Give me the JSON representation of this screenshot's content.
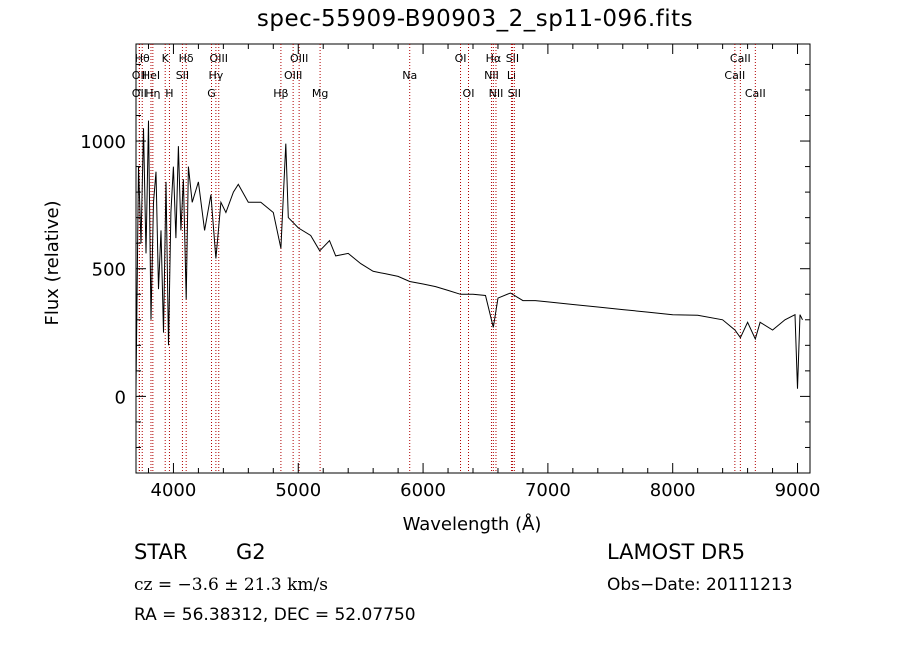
{
  "chart_data": {
    "type": "line",
    "title": "spec-55909-B90903_2_sp11-096.fits",
    "xlabel": "Wavelength (Å)",
    "ylabel": "Flux (relative)",
    "xlim": [
      3700,
      9100
    ],
    "ylim": [
      -300,
      1380
    ],
    "xticks": [
      4000,
      5000,
      6000,
      7000,
      8000,
      9000
    ],
    "yticks": [
      0,
      500,
      1000
    ],
    "grid": false,
    "series": [
      {
        "points": [
          [
            3700,
            30
          ],
          [
            3720,
            900
          ],
          [
            3740,
            600
          ],
          [
            3760,
            1050
          ],
          [
            3780,
            560
          ],
          [
            3800,
            1080
          ],
          [
            3820,
            300
          ],
          [
            3840,
            760
          ],
          [
            3860,
            880
          ],
          [
            3880,
            420
          ],
          [
            3900,
            650
          ],
          [
            3920,
            250
          ],
          [
            3940,
            840
          ],
          [
            3960,
            200
          ],
          [
            3980,
            720
          ],
          [
            4000,
            900
          ],
          [
            4020,
            620
          ],
          [
            4040,
            980
          ],
          [
            4060,
            650
          ],
          [
            4080,
            850
          ],
          [
            4102,
            380
          ],
          [
            4120,
            900
          ],
          [
            4150,
            760
          ],
          [
            4200,
            840
          ],
          [
            4250,
            650
          ],
          [
            4300,
            790
          ],
          [
            4340,
            540
          ],
          [
            4380,
            760
          ],
          [
            4420,
            720
          ],
          [
            4480,
            800
          ],
          [
            4520,
            830
          ],
          [
            4600,
            760
          ],
          [
            4700,
            760
          ],
          [
            4800,
            720
          ],
          [
            4861,
            580
          ],
          [
            4900,
            990
          ],
          [
            4920,
            700
          ],
          [
            5000,
            660
          ],
          [
            5100,
            630
          ],
          [
            5172,
            570
          ],
          [
            5250,
            610
          ],
          [
            5300,
            550
          ],
          [
            5400,
            560
          ],
          [
            5500,
            520
          ],
          [
            5600,
            490
          ],
          [
            5700,
            480
          ],
          [
            5800,
            470
          ],
          [
            5893,
            450
          ],
          [
            6000,
            440
          ],
          [
            6100,
            430
          ],
          [
            6200,
            415
          ],
          [
            6300,
            400
          ],
          [
            6400,
            400
          ],
          [
            6500,
            395
          ],
          [
            6563,
            270
          ],
          [
            6600,
            385
          ],
          [
            6700,
            405
          ],
          [
            6800,
            375
          ],
          [
            6900,
            375
          ],
          [
            7000,
            370
          ],
          [
            7200,
            360
          ],
          [
            7400,
            350
          ],
          [
            7600,
            340
          ],
          [
            7800,
            330
          ],
          [
            8000,
            320
          ],
          [
            8200,
            318
          ],
          [
            8400,
            300
          ],
          [
            8498,
            260
          ],
          [
            8542,
            230
          ],
          [
            8600,
            290
          ],
          [
            8662,
            225
          ],
          [
            8700,
            290
          ],
          [
            8800,
            260
          ],
          [
            8900,
            300
          ],
          [
            8980,
            320
          ],
          [
            9000,
            30
          ],
          [
            9020,
            320
          ],
          [
            9040,
            300
          ]
        ]
      }
    ],
    "lines": [
      {
        "name": "OII",
        "wave": 3727,
        "row": 2
      },
      {
        "name": "Hθ",
        "wave": 3750,
        "row": 1
      },
      {
        "name": "OII",
        "wave": 3727,
        "row": 3
      },
      {
        "name": "HeI",
        "wave": 3820,
        "row": 2
      },
      {
        "name": "Hη",
        "wave": 3835,
        "row": 3
      },
      {
        "name": "K",
        "wave": 3934,
        "row": 1
      },
      {
        "name": "H",
        "wave": 3968,
        "row": 3
      },
      {
        "name": "SII",
        "wave": 4072,
        "row": 2
      },
      {
        "name": "Hδ",
        "wave": 4102,
        "row": 1
      },
      {
        "name": "OIII",
        "wave": 4363,
        "row": 1
      },
      {
        "name": "Hγ",
        "wave": 4340,
        "row": 2
      },
      {
        "name": "G",
        "wave": 4305,
        "row": 3
      },
      {
        "name": "Hβ",
        "wave": 4861,
        "row": 3
      },
      {
        "name": "OIII",
        "wave": 4959,
        "row": 2
      },
      {
        "name": "OIII",
        "wave": 5007,
        "row": 1
      },
      {
        "name": "Mg",
        "wave": 5175,
        "row": 3
      },
      {
        "name": "Na",
        "wave": 5893,
        "row": 2
      },
      {
        "name": "OI",
        "wave": 6300,
        "row": 1
      },
      {
        "name": "OI",
        "wave": 6364,
        "row": 3
      },
      {
        "name": "Hα",
        "wave": 6563,
        "row": 1
      },
      {
        "name": "NII",
        "wave": 6548,
        "row": 2
      },
      {
        "name": "NII",
        "wave": 6584,
        "row": 3
      },
      {
        "name": "SII",
        "wave": 6716,
        "row": 1
      },
      {
        "name": "Li",
        "wave": 6708,
        "row": 2
      },
      {
        "name": "SII",
        "wave": 6731,
        "row": 3
      },
      {
        "name": "CaII",
        "wave": 8542,
        "row": 1
      },
      {
        "name": "CaII",
        "wave": 8498,
        "row": 2
      },
      {
        "name": "CaII",
        "wave": 8662,
        "row": 3
      }
    ]
  },
  "info": {
    "obj_class": "STAR",
    "obj_subclass": "G2",
    "survey": "LAMOST DR5",
    "cz": "cz = −3.6 ± 21.3 km/s",
    "obs_date": "Obs−Date: 20111213",
    "radec": "RA =  56.38312, DEC =  52.07750"
  }
}
